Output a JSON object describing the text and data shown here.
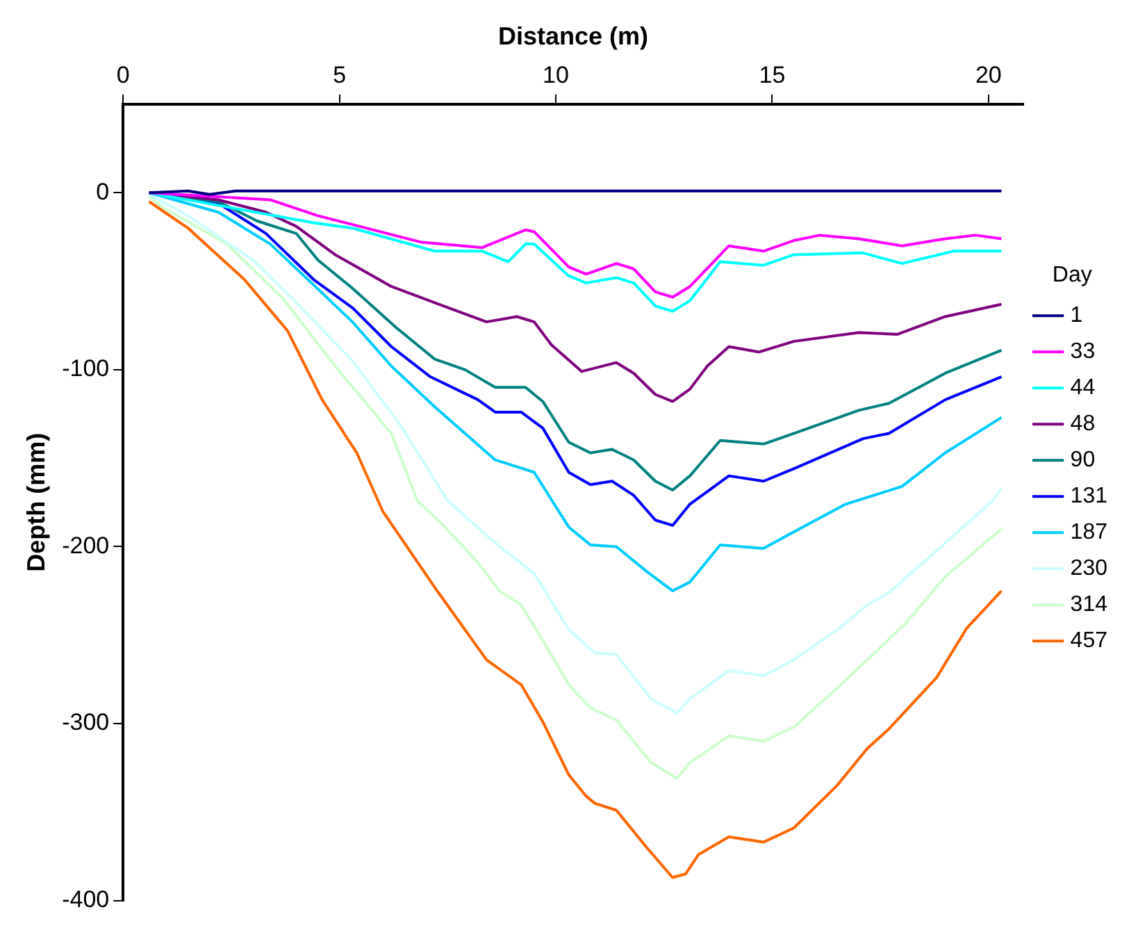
{
  "chart_data": {
    "type": "line",
    "xlabel": "Distance (m)",
    "ylabel": "Depth (mm)",
    "legend_title": "Day",
    "xlim": [
      0,
      20.8
    ],
    "xticks": [
      0,
      5,
      10,
      15,
      20
    ],
    "ylim": [
      -400,
      50
    ],
    "yticks": [
      -400,
      -300,
      -200,
      -100,
      0
    ],
    "grid": false,
    "legend": "right",
    "marker": "none",
    "line_style": "solid",
    "series": [
      {
        "name": "1",
        "color": "#000080",
        "x": [
          0.6,
          1.5,
          2.0,
          2.6,
          20.3
        ],
        "values": [
          0,
          1,
          -1,
          1,
          1
        ]
      },
      {
        "name": "33",
        "color": "#ff00ff",
        "x": [
          0.6,
          3.4,
          4.5,
          6.9,
          8.3,
          9.3,
          9.5,
          10.3,
          10.7,
          11.4,
          11.8,
          12.3,
          12.7,
          13.1,
          14.0,
          14.8,
          15.5,
          16.1,
          17.0,
          18.0,
          19.0,
          19.7,
          20.3
        ],
        "values": [
          0,
          -4,
          -13,
          -28,
          -31,
          -21,
          -22,
          -42,
          -46,
          -40,
          -43,
          -56,
          -59,
          -53,
          -30,
          -33,
          -27,
          -24,
          -26,
          -30,
          -26,
          -24,
          -26
        ]
      },
      {
        "name": "44",
        "color": "#00ffff",
        "x": [
          0.6,
          4.4,
          5.3,
          7.2,
          8.3,
          8.9,
          9.3,
          9.5,
          10.3,
          10.7,
          11.4,
          11.8,
          12.3,
          12.7,
          13.1,
          13.8,
          14.8,
          15.5,
          17.1,
          18.0,
          19.2,
          20.3
        ],
        "values": [
          0,
          -17,
          -20,
          -33,
          -33,
          -39,
          -29,
          -29,
          -47,
          -51,
          -48,
          -51,
          -64,
          -67,
          -61,
          -39,
          -41,
          -35,
          -34,
          -40,
          -33,
          -33
        ]
      },
      {
        "name": "48",
        "color": "#800080",
        "x": [
          0.6,
          2.2,
          3.3,
          4.0,
          4.9,
          6.2,
          7.4,
          8.4,
          9.1,
          9.5,
          9.9,
          10.6,
          11.4,
          11.8,
          12.3,
          12.7,
          13.1,
          13.5,
          14.0,
          14.7,
          15.5,
          17.0,
          17.9,
          19.0,
          20.3
        ],
        "values": [
          0,
          -4,
          -11,
          -19,
          -35,
          -53,
          -64,
          -73,
          -70,
          -73,
          -86,
          -101,
          -96,
          -102,
          -114,
          -118,
          -111,
          -98,
          -87,
          -90,
          -84,
          -79,
          -80,
          -70,
          -63
        ]
      },
      {
        "name": "90",
        "color": "#008080",
        "x": [
          0.6,
          2.2,
          3.1,
          4.0,
          4.5,
          5.3,
          6.3,
          7.2,
          7.9,
          8.6,
          9.3,
          9.7,
          10.3,
          10.8,
          11.3,
          11.8,
          12.3,
          12.7,
          13.1,
          13.8,
          14.8,
          15.5,
          17.0,
          17.7,
          19.0,
          20.3
        ],
        "values": [
          0,
          -5,
          -16,
          -23,
          -38,
          -54,
          -76,
          -94,
          -100,
          -110,
          -110,
          -118,
          -141,
          -147,
          -145,
          -151,
          -163,
          -168,
          -160,
          -140,
          -142,
          -136,
          -123,
          -119,
          -102,
          -89
        ]
      },
      {
        "name": "131",
        "color": "#0000ff",
        "x": [
          0.6,
          2.2,
          3.3,
          4.4,
          5.3,
          6.2,
          7.1,
          8.2,
          8.6,
          9.2,
          9.7,
          10.3,
          10.8,
          11.3,
          11.8,
          12.3,
          12.7,
          13.1,
          14.0,
          14.8,
          15.5,
          17.1,
          17.7,
          19.0,
          20.3
        ],
        "values": [
          0,
          -6,
          -23,
          -49,
          -65,
          -87,
          -104,
          -117,
          -124,
          -124,
          -133,
          -158,
          -165,
          -163,
          -171,
          -185,
          -188,
          -176,
          -160,
          -163,
          -156,
          -139,
          -136,
          -117,
          -104
        ]
      },
      {
        "name": "187",
        "color": "#00ccff",
        "x": [
          0.6,
          2.2,
          3.4,
          4.4,
          5.3,
          6.2,
          7.2,
          8.6,
          9.5,
          10.3,
          10.8,
          11.4,
          12.1,
          12.7,
          13.1,
          13.8,
          14.8,
          15.4,
          16.7,
          18.0,
          19.0,
          20.3
        ],
        "values": [
          0,
          -11,
          -29,
          -52,
          -73,
          -98,
          -121,
          -151,
          -158,
          -189,
          -199,
          -200,
          -214,
          -225,
          -220,
          -199,
          -201,
          -193,
          -176,
          -166,
          -147,
          -127
        ]
      },
      {
        "name": "230",
        "color": "#ccffff",
        "x": [
          0.6,
          1.5,
          3.0,
          4.0,
          5.3,
          6.4,
          7.5,
          8.7,
          9.5,
          10.3,
          10.9,
          11.4,
          12.2,
          12.8,
          13.1,
          14.0,
          14.8,
          15.5,
          16.5,
          17.2,
          17.7,
          19.0,
          20.1,
          20.3
        ],
        "values": [
          -1,
          -13,
          -38,
          -62,
          -95,
          -131,
          -174,
          -200,
          -215,
          -247,
          -260,
          -261,
          -286,
          -294,
          -286,
          -270,
          -273,
          -264,
          -247,
          -233,
          -226,
          -198,
          -174,
          -167
        ]
      },
      {
        "name": "314",
        "color": "#ccffcc",
        "x": [
          0.6,
          0.9,
          2.4,
          3.7,
          4.9,
          6.2,
          6.8,
          7.4,
          8.2,
          8.7,
          9.2,
          9.7,
          10.3,
          10.8,
          11.4,
          12.2,
          12.8,
          13.1,
          14.0,
          14.8,
          15.5,
          16.5,
          17.2,
          18.1,
          19.0,
          20.3
        ],
        "values": [
          -2,
          -8,
          -29,
          -60,
          -98,
          -136,
          -174,
          -188,
          -209,
          -225,
          -233,
          -253,
          -278,
          -291,
          -298,
          -322,
          -331,
          -322,
          -307,
          -310,
          -302,
          -280,
          -264,
          -243,
          -217,
          -190
        ]
      },
      {
        "name": "457",
        "color": "#ff6600",
        "x": [
          0.6,
          1.5,
          2.8,
          3.8,
          4.6,
          5.4,
          6.0,
          7.2,
          8.4,
          9.2,
          9.7,
          10.3,
          10.7,
          10.9,
          11.4,
          12.1,
          12.7,
          13.0,
          13.3,
          14.0,
          14.8,
          15.5,
          16.5,
          17.2,
          17.7,
          18.8,
          19.5,
          20.3
        ],
        "values": [
          -5,
          -20,
          -49,
          -78,
          -117,
          -147,
          -180,
          -223,
          -264,
          -278,
          -299,
          -329,
          -341,
          -345,
          -349,
          -370,
          -387,
          -385,
          -374,
          -364,
          -367,
          -359,
          -335,
          -314,
          -303,
          -274,
          -246,
          -225
        ]
      }
    ]
  }
}
